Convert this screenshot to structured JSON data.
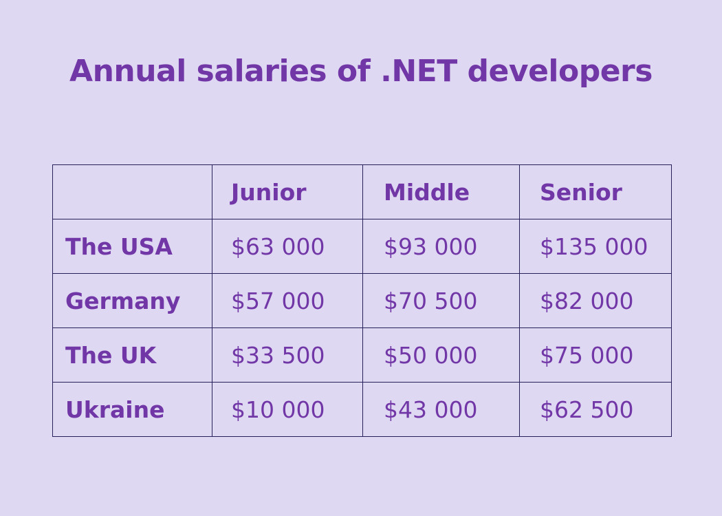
{
  "title": "Annual salaries of .NET developers",
  "table": {
    "columns": [
      "",
      "Junior",
      "Middle",
      "Senior"
    ],
    "rows": [
      {
        "label": "The USA",
        "values": [
          "$63 000",
          "$93 000",
          "$135 000"
        ]
      },
      {
        "label": "Germany",
        "values": [
          "$57 000",
          "$70 500",
          "$82 000"
        ]
      },
      {
        "label": "The UK",
        "values": [
          "$33 500",
          "$50 000",
          "$75 000"
        ]
      },
      {
        "label": "Ukraine",
        "values": [
          "$10 000",
          "$43 000",
          "$62 500"
        ]
      }
    ]
  },
  "colors": {
    "background": "#dfd8f3",
    "text": "#7237a6",
    "border": "#25205a"
  },
  "chart_data": {
    "type": "table",
    "title": "Annual salaries of .NET developers",
    "categories": [
      "The USA",
      "Germany",
      "The UK",
      "Ukraine"
    ],
    "series": [
      {
        "name": "Junior",
        "values": [
          63000,
          57000,
          33500,
          10000
        ]
      },
      {
        "name": "Middle",
        "values": [
          93000,
          70500,
          50000,
          43000
        ]
      },
      {
        "name": "Senior",
        "values": [
          135000,
          82000,
          75000,
          62500
        ]
      }
    ],
    "unit": "USD per year"
  }
}
